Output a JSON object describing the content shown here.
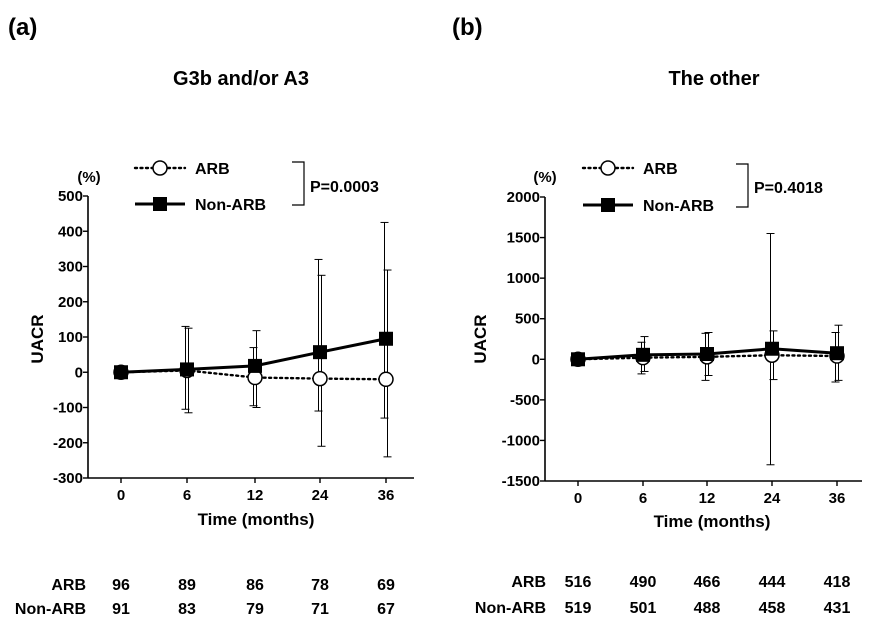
{
  "chart_data": [
    {
      "type": "line",
      "panel_label": "(a)",
      "title": "G3b and/or A3",
      "xlabel": "Time (months)",
      "ylabel": "UACR",
      "yunit": "(%)",
      "ylim": [
        -300,
        500
      ],
      "yticks": [
        500,
        400,
        300,
        200,
        100,
        0,
        -100,
        -200,
        -300
      ],
      "categories": [
        "0",
        "6",
        "12",
        "24",
        "36"
      ],
      "p_value": "P=0.0003",
      "legend_position": "top-left",
      "series": [
        {
          "name": "ARB",
          "marker": "open-circle",
          "line": "dotted",
          "values": [
            0,
            5,
            -15,
            -18,
            -20
          ],
          "err_low": [
            0,
            -105,
            -95,
            -110,
            -130
          ],
          "err_high": [
            0,
            130,
            70,
            320,
            425
          ]
        },
        {
          "name": "Non-ARB",
          "marker": "filled-square",
          "line": "solid",
          "values": [
            0,
            8,
            18,
            57,
            95
          ],
          "err_low": [
            0,
            -115,
            -100,
            -210,
            -240
          ],
          "err_high": [
            0,
            125,
            118,
            275,
            290
          ]
        }
      ],
      "counts": [
        {
          "label": "ARB",
          "values": [
            "96",
            "89",
            "86",
            "78",
            "69"
          ]
        },
        {
          "label": "Non-ARB",
          "values": [
            "91",
            "83",
            "79",
            "71",
            "67"
          ]
        }
      ]
    },
    {
      "type": "line",
      "panel_label": "(b)",
      "title": "The other",
      "xlabel": "Time (months)",
      "ylabel": "UACR",
      "yunit": "(%)",
      "ylim": [
        -1500,
        2000
      ],
      "yticks": [
        2000,
        1500,
        1000,
        500,
        0,
        -500,
        -1000,
        -1500
      ],
      "categories": [
        "0",
        "6",
        "12",
        "24",
        "36"
      ],
      "p_value": "P=0.4018",
      "legend_position": "top-left",
      "series": [
        {
          "name": "ARB",
          "marker": "open-circle",
          "line": "dotted",
          "values": [
            0,
            20,
            30,
            50,
            40
          ],
          "err_low": [
            0,
            -180,
            -260,
            -1300,
            -280
          ],
          "err_high": [
            0,
            210,
            320,
            1550,
            330
          ]
        },
        {
          "name": "Non-ARB",
          "marker": "filled-square",
          "line": "solid",
          "values": [
            0,
            55,
            65,
            130,
            75
          ],
          "err_low": [
            0,
            -150,
            -200,
            -250,
            -260
          ],
          "err_high": [
            0,
            280,
            330,
            350,
            420
          ]
        }
      ],
      "counts": [
        {
          "label": "ARB",
          "values": [
            "516",
            "490",
            "466",
            "444",
            "418"
          ]
        },
        {
          "label": "Non-ARB",
          "values": [
            "519",
            "501",
            "488",
            "458",
            "431"
          ]
        }
      ]
    }
  ]
}
